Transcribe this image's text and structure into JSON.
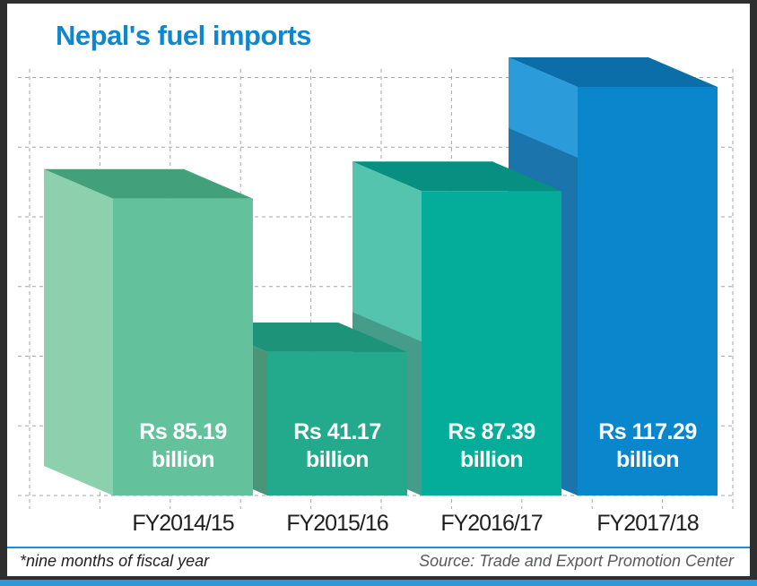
{
  "frame": {
    "border_color": "#2e2e2e",
    "bottom_strip_color": "#2f97dc"
  },
  "header": {
    "title": "Nepal's fuel imports",
    "title_color": "#0e87cf"
  },
  "footer": {
    "note": "*nine months of fiscal year",
    "source": "Source: Trade and Export Promotion Center",
    "divider_color": "#1a8fd6",
    "note_color": "#231f20",
    "source_color": "#58595b"
  },
  "chart_data": {
    "type": "bar",
    "title": "Nepal's fuel imports",
    "unit": "Rs billion (NPR)",
    "categories": [
      "FY2014/15",
      "FY2015/16",
      "FY2016/17",
      "FY2017/18"
    ],
    "values": [
      85.19,
      41.17,
      87.39,
      117.29
    ],
    "value_labels": [
      {
        "line1": "Rs 85.19",
        "line2": "billion"
      },
      {
        "line1": "Rs 41.17",
        "line2": "billion"
      },
      {
        "line1": "Rs 87.39",
        "line2": "billion"
      },
      {
        "line1": "Rs 117.29",
        "line2": "billion"
      }
    ],
    "xlabel": "",
    "ylabel": "",
    "ylim": [
      0,
      120
    ],
    "gridline_step": 20,
    "grid": "dashed, horizontal and vertical, no tick labels",
    "legend": "none",
    "style": "3d-boxes",
    "label_color": "#ffffff",
    "axis_label_color": "#1f1f1f",
    "grid_color": "#a3a6a8",
    "bars_style": [
      {
        "front": "#63c19b",
        "left": "#8dd0ad",
        "left_shade": null,
        "top": "#42a07a",
        "shade_offset": null
      },
      {
        "front": "#23aa8d",
        "left": "#4a9478",
        "left_shade": null,
        "top": "#1d9479",
        "shade_offset": null
      },
      {
        "front": "#04ad9a",
        "left": "#55c4ae",
        "left_shade": "#459c8b",
        "top": "#079081",
        "shade_offset": 168
      },
      {
        "front": "#0a87cc",
        "left": "#2b9cd9",
        "left_shade": "#1b74ac",
        "top": "#0b6ea8",
        "shade_offset": 79
      }
    ]
  }
}
